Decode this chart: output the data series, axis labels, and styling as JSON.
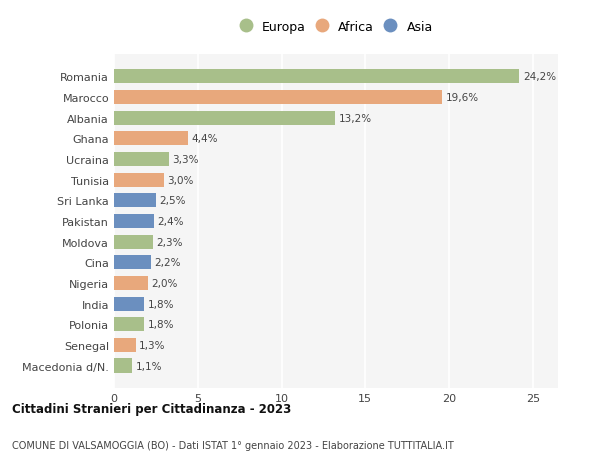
{
  "countries": [
    "Romania",
    "Marocco",
    "Albania",
    "Ghana",
    "Ucraina",
    "Tunisia",
    "Sri Lanka",
    "Pakistan",
    "Moldova",
    "Cina",
    "Nigeria",
    "India",
    "Polonia",
    "Senegal",
    "Macedonia d/N."
  ],
  "values": [
    24.2,
    19.6,
    13.2,
    4.4,
    3.3,
    3.0,
    2.5,
    2.4,
    2.3,
    2.2,
    2.0,
    1.8,
    1.8,
    1.3,
    1.1
  ],
  "labels": [
    "24,2%",
    "19,6%",
    "13,2%",
    "4,4%",
    "3,3%",
    "3,0%",
    "2,5%",
    "2,4%",
    "2,3%",
    "2,2%",
    "2,0%",
    "1,8%",
    "1,8%",
    "1,3%",
    "1,1%"
  ],
  "continents": [
    "Europa",
    "Africa",
    "Europa",
    "Africa",
    "Europa",
    "Africa",
    "Asia",
    "Asia",
    "Europa",
    "Asia",
    "Africa",
    "Asia",
    "Europa",
    "Africa",
    "Europa"
  ],
  "colors": {
    "Europa": "#a8bf8a",
    "Africa": "#e8a87c",
    "Asia": "#6b8fbf"
  },
  "legend_order": [
    "Europa",
    "Africa",
    "Asia"
  ],
  "title1": "Cittadini Stranieri per Cittadinanza - 2023",
  "title2": "COMUNE DI VALSAMOGGIA (BO) - Dati ISTAT 1° gennaio 2023 - Elaborazione TUTTITALIA.IT",
  "xlim": [
    0,
    26.5
  ],
  "xticks": [
    0,
    5,
    10,
    15,
    20,
    25
  ],
  "background_color": "#ffffff",
  "plot_bg_color": "#f5f5f5",
  "grid_color": "#ffffff"
}
